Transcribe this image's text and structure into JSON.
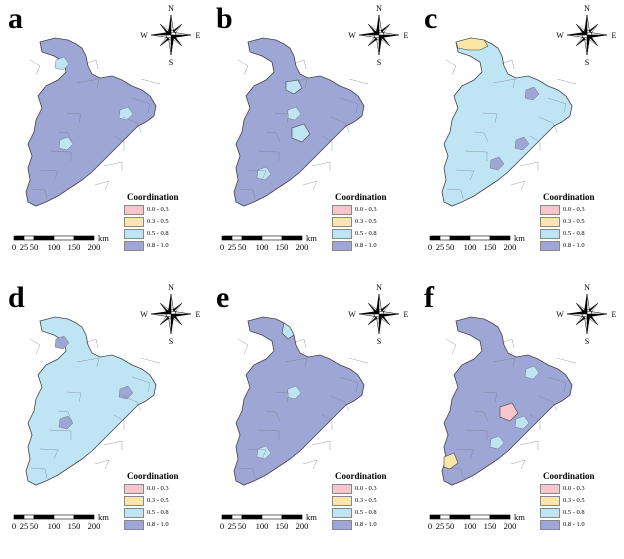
{
  "compass": {
    "north": "N",
    "south": "S",
    "east": "E",
    "west": "W"
  },
  "scale": {
    "ticks": [
      "0",
      "25",
      "50",
      "100",
      "150",
      "200"
    ],
    "unit": "km"
  },
  "legend": {
    "title": "Coordination",
    "classes": [
      {
        "label": "0.0 - 0.3",
        "color": "#f6c6cc"
      },
      {
        "label": "0.3 - 0.5",
        "color": "#f8e7a6"
      },
      {
        "label": "0.5 - 0.8",
        "color": "#bfe5f5"
      },
      {
        "label": "0.8 - 1.0",
        "color": "#9ea6d6"
      }
    ]
  },
  "panels": [
    {
      "letter": "a",
      "dominant_class": 3,
      "highlights": []
    },
    {
      "letter": "b",
      "dominant_class": 3,
      "highlights": [
        {
          "region": "north-center",
          "class": 2
        },
        {
          "region": "center",
          "class": 2
        }
      ]
    },
    {
      "letter": "c",
      "dominant_class": 2,
      "highlights": [
        {
          "region": "northwest-tip",
          "class": 1
        }
      ]
    },
    {
      "letter": "d",
      "dominant_class": 2,
      "highlights": []
    },
    {
      "letter": "e",
      "dominant_class": 3,
      "highlights": [
        {
          "region": "north-tip",
          "class": 2
        }
      ]
    },
    {
      "letter": "f",
      "dominant_class": 3,
      "highlights": [
        {
          "region": "southwest",
          "class": 1
        },
        {
          "region": "center",
          "class": 0
        }
      ]
    }
  ]
}
